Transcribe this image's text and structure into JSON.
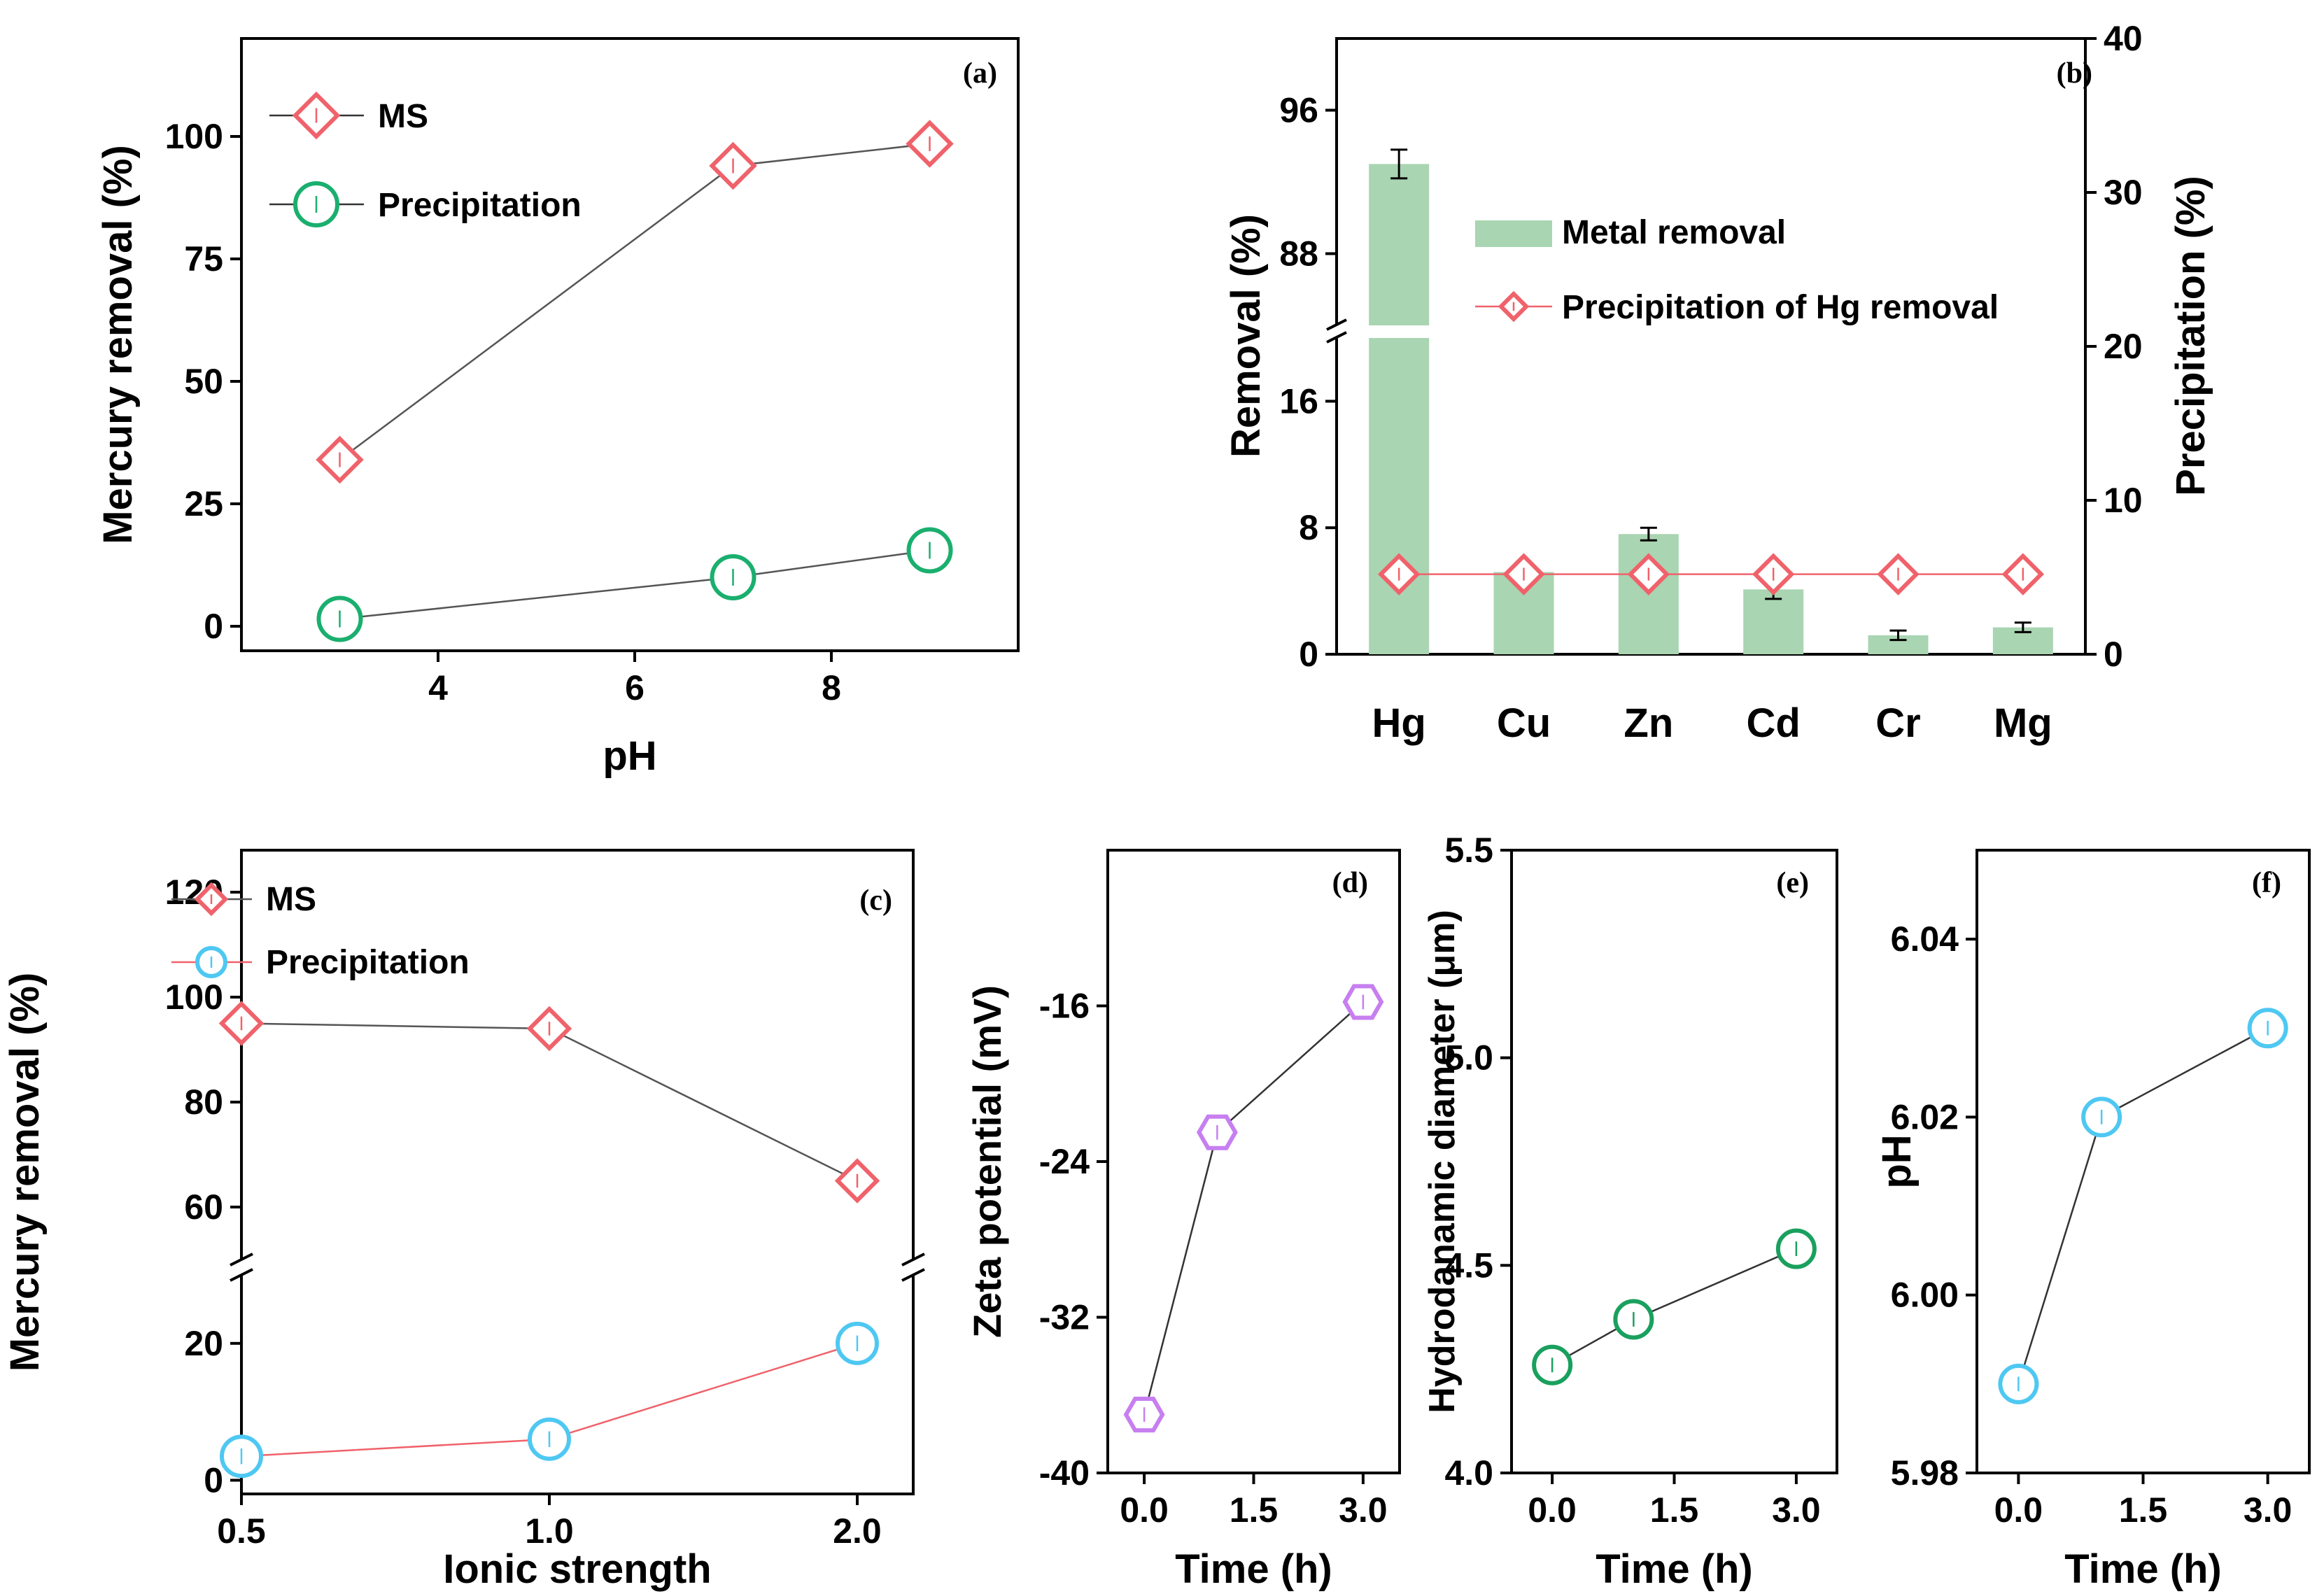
{
  "colors": {
    "ms": "#f0626b",
    "precip_green": "#1aaf6e",
    "bar_green": "#a9d5b2",
    "precip_cyan": "#4ec8f2",
    "zeta_purple": "#c77ff0",
    "hd_green": "#1aa05e",
    "red_line": "#f0626b",
    "gray_line": "#555555"
  },
  "chart_data": [
    {
      "id": "a",
      "panel_label": "(a)",
      "type": "line",
      "title": "",
      "xlabel": "pH",
      "ylabel": "Mercury removal (%)",
      "xlim": [
        2.0,
        9.9
      ],
      "ylim": [
        -5,
        120
      ],
      "xticks": [
        4,
        6,
        8
      ],
      "xtick_labels": [
        "4",
        "6",
        "8"
      ],
      "yticks": [
        0,
        25,
        50,
        75,
        100
      ],
      "ytick_labels": [
        "0",
        "25",
        "50",
        "75",
        "100"
      ],
      "x": [
        3,
        7,
        9
      ],
      "series": [
        {
          "name": "MS",
          "marker": "diamond",
          "values": [
            34,
            94,
            98.5
          ]
        },
        {
          "name": "Precipitation",
          "marker": "circle",
          "values": [
            1.5,
            10,
            15.5
          ]
        }
      ],
      "legend_position": "top-left"
    },
    {
      "id": "b",
      "panel_label": "(b)",
      "type": "bar",
      "title": "",
      "xlabel": "",
      "ylabel": "Removal (%)",
      "ylabel_right": "Precipitation (%)",
      "categories": [
        "Hg",
        "Cu",
        "Zn",
        "Cd",
        "Cr",
        "Mg"
      ],
      "broken_y_axis": {
        "lower_range": [
          0,
          20
        ],
        "upper_range": [
          84,
          100
        ]
      },
      "yticks": [
        0,
        8,
        16,
        88,
        96
      ],
      "ytick_labels": [
        "0",
        "8",
        "16",
        "88",
        "96"
      ],
      "yticks_right": [
        0,
        10,
        20,
        30,
        40
      ],
      "ytick_labels_right": [
        "0",
        "10",
        "20",
        "30",
        "40"
      ],
      "ylim_right": [
        0,
        40
      ],
      "series": [
        {
          "name": "Metal removal",
          "axis": "left",
          "values": [
            93,
            5.2,
            7.6,
            4.1,
            1.2,
            1.7
          ],
          "errors": [
            0.8,
            0.2,
            0.4,
            0.6,
            0.3,
            0.3
          ]
        },
        {
          "name": "Precipitation of Hg removal",
          "axis": "right",
          "marker": "diamond",
          "values": [
            5.2,
            5.2,
            5.2,
            5.2,
            5.2,
            5.2
          ]
        }
      ],
      "legend_position": "middle-right"
    },
    {
      "id": "c",
      "panel_label": "(c)",
      "type": "line",
      "title": "",
      "xlabel": "Ionic strength",
      "ylabel": "Mercury removal (%)",
      "categories": [
        "0.5",
        "1.0",
        "2.0"
      ],
      "broken_y_axis": {
        "lower_range": [
          -2,
          30
        ],
        "upper_range": [
          50,
          128
        ]
      },
      "yticks": [
        0,
        20,
        60,
        80,
        100,
        120
      ],
      "ytick_labels": [
        "0",
        "20",
        "60",
        "80",
        "100",
        "120"
      ],
      "series": [
        {
          "name": "MS",
          "marker": "diamond",
          "values": [
            95,
            94,
            65
          ]
        },
        {
          "name": "Precipitation",
          "marker": "circle",
          "values": [
            3.5,
            6,
            20
          ]
        }
      ],
      "legend_position": "top-left"
    },
    {
      "id": "d",
      "panel_label": "(d)",
      "type": "line",
      "title": "",
      "xlabel": "Time (h)",
      "ylabel": "Zeta potential (mV)",
      "xlim": [
        -0.5,
        3.5
      ],
      "ylim": [
        -40,
        -8
      ],
      "xticks": [
        0,
        1.5,
        3
      ],
      "xtick_labels": [
        "0.0",
        "1.5",
        "3.0"
      ],
      "yticks": [
        -40,
        -32,
        -24,
        -16
      ],
      "ytick_labels": [
        "-40",
        "-32",
        "-24",
        "-16"
      ],
      "x": [
        0,
        1,
        3
      ],
      "series": [
        {
          "name": "Zeta potential",
          "marker": "hexagon",
          "values": [
            -37.0,
            -22.5,
            -15.8
          ]
        }
      ]
    },
    {
      "id": "e",
      "panel_label": "(e)",
      "type": "line",
      "title": "",
      "xlabel": "Time (h)",
      "ylabel": "Hydrodanamic diameter (μm)",
      "xlim": [
        -0.5,
        3.5
      ],
      "ylim": [
        4.0,
        5.5
      ],
      "xticks": [
        0,
        1.5,
        3
      ],
      "xtick_labels": [
        "0.0",
        "1.5",
        "3.0"
      ],
      "yticks": [
        4.0,
        4.5,
        5.0,
        5.5
      ],
      "ytick_labels": [
        "4.0",
        "4.5",
        "5.0",
        "5.5"
      ],
      "x": [
        0,
        1,
        3
      ],
      "series": [
        {
          "name": "Hydrodynamic diameter",
          "marker": "circle",
          "values": [
            4.26,
            4.37,
            4.54
          ]
        }
      ]
    },
    {
      "id": "f",
      "panel_label": "(f)",
      "type": "line",
      "title": "",
      "xlabel": "Time (h)",
      "ylabel": "pH",
      "xlim": [
        -0.5,
        3.5
      ],
      "ylim": [
        5.98,
        6.05
      ],
      "xticks": [
        0,
        1.5,
        3
      ],
      "xtick_labels": [
        "0.0",
        "1.5",
        "3.0"
      ],
      "yticks": [
        5.98,
        6.0,
        6.02,
        6.04
      ],
      "ytick_labels": [
        "5.98",
        "6.00",
        "6.02",
        "6.04"
      ],
      "x": [
        0,
        1,
        3
      ],
      "series": [
        {
          "name": "pH",
          "marker": "circle",
          "values": [
            5.99,
            6.02,
            6.03
          ]
        }
      ]
    }
  ]
}
